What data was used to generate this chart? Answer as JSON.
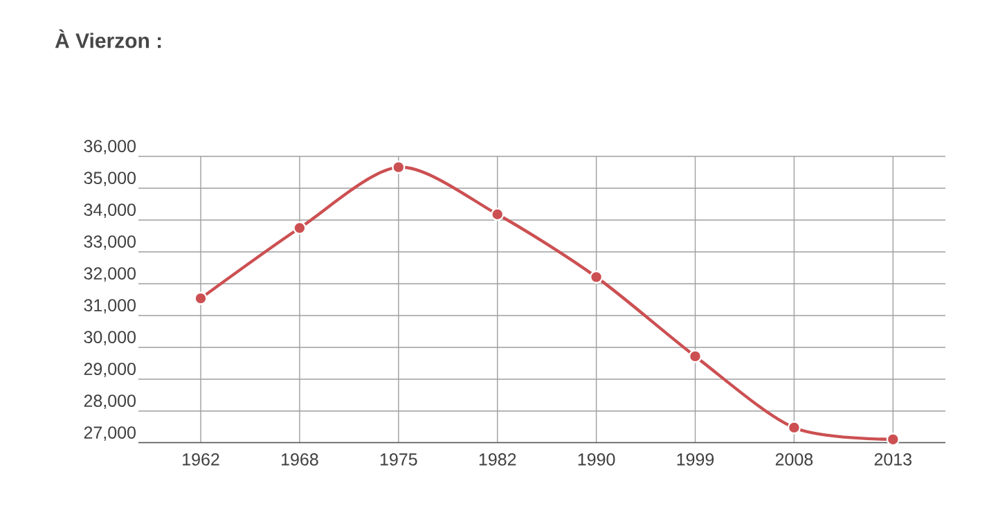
{
  "chart_data": {
    "type": "line",
    "title": "À Vierzon :",
    "categories": [
      "1962",
      "1968",
      "1975",
      "1982",
      "1990",
      "1999",
      "2008",
      "2013"
    ],
    "values": [
      31540,
      33750,
      35660,
      34180,
      32210,
      29720,
      27480,
      27110
    ],
    "color": "#cc5052",
    "ylim": [
      27000,
      36000
    ],
    "yticks": [
      {
        "value": 27000,
        "label": "27,000"
      },
      {
        "value": 28000,
        "label": "28,000"
      },
      {
        "value": 29000,
        "label": "29,000"
      },
      {
        "value": 30000,
        "label": "30,000"
      },
      {
        "value": 31000,
        "label": "31,000"
      },
      {
        "value": 32000,
        "label": "32,000"
      },
      {
        "value": 33000,
        "label": "33,000"
      },
      {
        "value": 34000,
        "label": "34,000"
      },
      {
        "value": 35000,
        "label": "35,000"
      },
      {
        "value": 36000,
        "label": "36,000"
      }
    ],
    "grid": true,
    "marker": "circle",
    "line_style": "solid"
  }
}
